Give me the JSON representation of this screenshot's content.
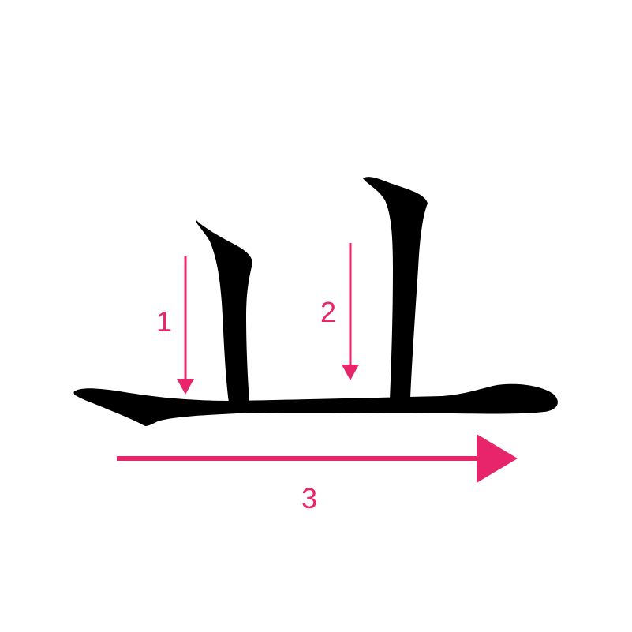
{
  "colors": {
    "background": "#ffffff",
    "stroke_ink": "#000000",
    "arrow": "#e8246a"
  },
  "character": {
    "strokes": [
      {
        "name": "left-vertical-stroke",
        "order": 1,
        "direction": "down"
      },
      {
        "name": "right-vertical-stroke",
        "order": 2,
        "direction": "down"
      },
      {
        "name": "horizontal-base-stroke",
        "order": 3,
        "direction": "right"
      }
    ]
  },
  "arrows": {
    "step1": {
      "label": "1",
      "direction": "down"
    },
    "step2": {
      "label": "2",
      "direction": "down"
    },
    "step3": {
      "label": "3",
      "direction": "right"
    }
  }
}
